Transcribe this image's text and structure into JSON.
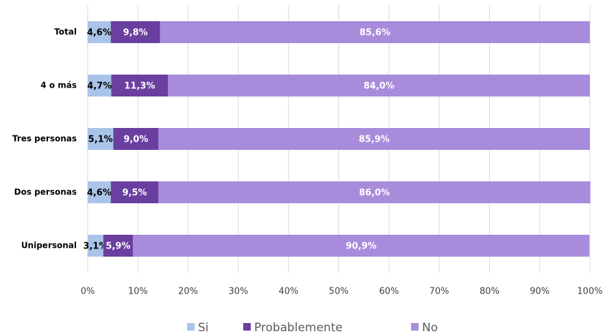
{
  "chart_data": {
    "type": "stacked_bar_horizontal",
    "categories": [
      "Total",
      "4 o más",
      "Tres personas",
      "Dos personas",
      "Unipersonal"
    ],
    "series": [
      {
        "name": "Si",
        "color": "#a9c4e8",
        "values": [
          4.6,
          4.7,
          5.1,
          4.6,
          3.1
        ],
        "value_labels": [
          "4,6%",
          "4,7%",
          "5,1%",
          "4,6%",
          "3,1%"
        ]
      },
      {
        "name": "Probablemente",
        "color": "#6a3fa0",
        "values": [
          9.8,
          11.3,
          9.0,
          9.5,
          5.9
        ],
        "value_labels": [
          "9,8%",
          "11,3%",
          "9,0%",
          "9,5%",
          "5,9%"
        ]
      },
      {
        "name": "No",
        "color": "#a98bdc",
        "values": [
          85.6,
          84.0,
          85.9,
          86.0,
          90.9
        ],
        "value_labels": [
          "85,6%",
          "84,0%",
          "85,9%",
          "86,0%",
          "90,9%"
        ]
      }
    ],
    "xlim": [
      0,
      100
    ],
    "xticks": [
      {
        "value": 0,
        "label": "0%"
      },
      {
        "value": 10,
        "label": "10%"
      },
      {
        "value": 20,
        "label": "20%"
      },
      {
        "value": 30,
        "label": "30%"
      },
      {
        "value": 40,
        "label": "40%"
      },
      {
        "value": 50,
        "label": "50%"
      },
      {
        "value": 60,
        "label": "60%"
      },
      {
        "value": 70,
        "label": "70%"
      },
      {
        "value": 80,
        "label": "80%"
      },
      {
        "value": 90,
        "label": "90%"
      },
      {
        "value": 100,
        "label": "100%"
      }
    ],
    "grid": true,
    "legend": "bottom"
  }
}
